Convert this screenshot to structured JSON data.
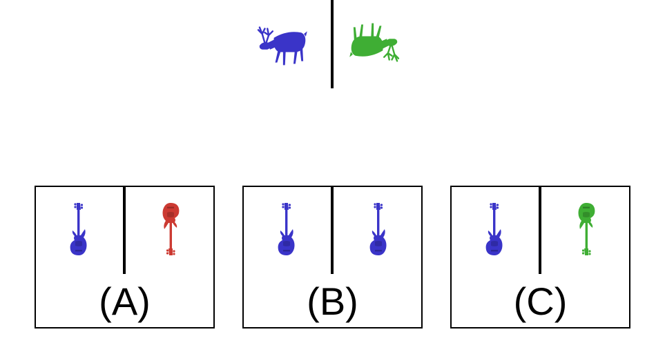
{
  "question": {
    "left_icon": {
      "name": "deer-icon",
      "color": "#3a34c8",
      "orientation": "upright-facing-left"
    },
    "right_icon": {
      "name": "deer-icon",
      "color": "#3fae34",
      "orientation": "upside-down"
    }
  },
  "options": [
    {
      "label": "(A)",
      "left_icon": {
        "name": "bass-guitar-icon",
        "color": "#3a34c8",
        "orientation": "upright"
      },
      "right_icon": {
        "name": "bass-guitar-icon",
        "color": "#cc3a32",
        "orientation": "upside-down"
      }
    },
    {
      "label": "(B)",
      "left_icon": {
        "name": "bass-guitar-icon",
        "color": "#3a34c8",
        "orientation": "upright"
      },
      "right_icon": {
        "name": "bass-guitar-icon",
        "color": "#3a34c8",
        "orientation": "upright"
      }
    },
    {
      "label": "(C)",
      "left_icon": {
        "name": "bass-guitar-icon",
        "color": "#3a34c8",
        "orientation": "upright"
      },
      "right_icon": {
        "name": "bass-guitar-icon",
        "color": "#3fae34",
        "orientation": "upside-down"
      }
    }
  ]
}
